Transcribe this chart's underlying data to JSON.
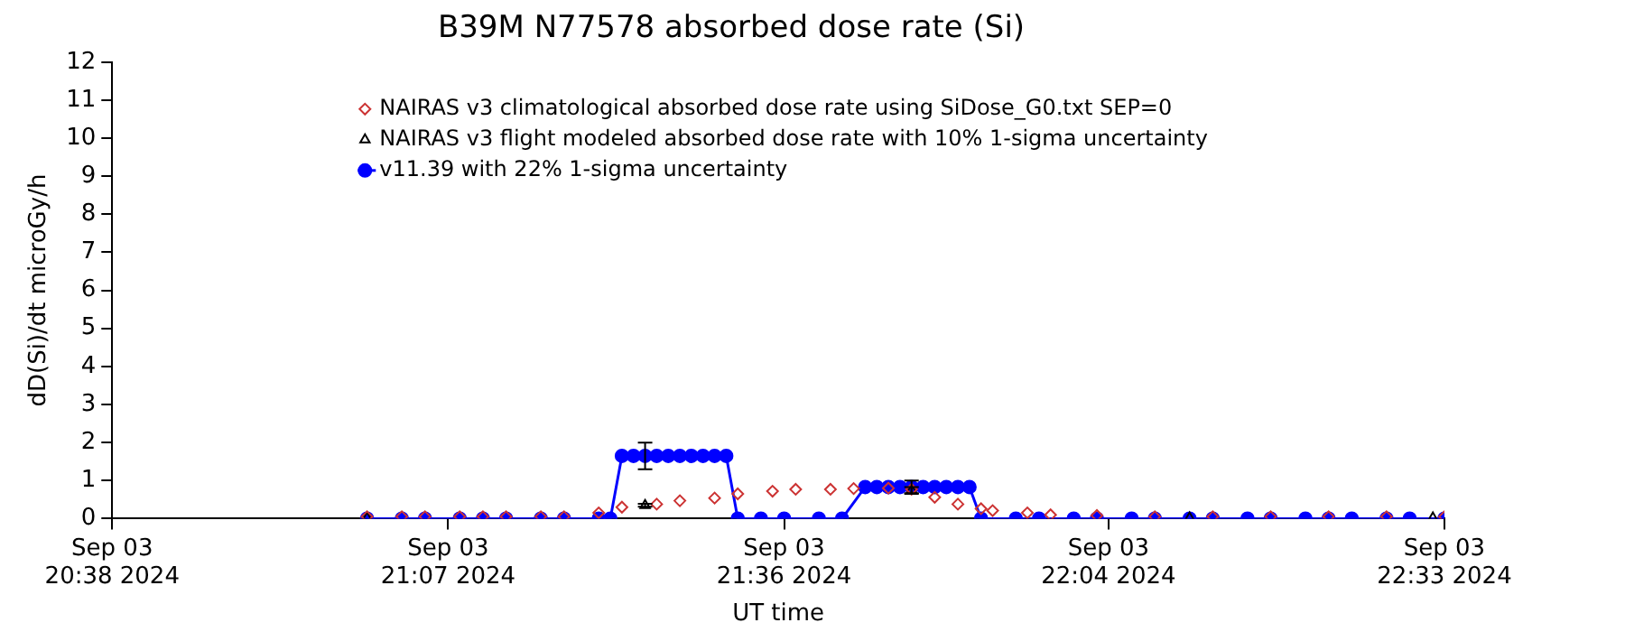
{
  "chart_data": {
    "type": "line",
    "title": "B39M N77578 absorbed dose rate (Si)",
    "xlabel": "UT time",
    "ylabel": "dD(Si)/dt microGy/h",
    "xlim": [
      "2024-09-03T20:38",
      "2024-09-03T22:33"
    ],
    "xticks": [
      {
        "value": "2024-09-03T20:38",
        "label": "Sep 03\n20:38 2024"
      },
      {
        "value": "2024-09-03T21:07",
        "label": "Sep 03\n21:07 2024"
      },
      {
        "value": "2024-09-03T21:36",
        "label": "Sep 03\n21:36 2024"
      },
      {
        "value": "2024-09-03T22:04",
        "label": "Sep 03\n22:04 2024"
      },
      {
        "value": "2024-09-03T22:33",
        "label": "Sep 03\n22:33 2024"
      }
    ],
    "ylim": [
      0,
      12
    ],
    "yticks": [
      0,
      1,
      2,
      3,
      4,
      5,
      6,
      7,
      8,
      9,
      10,
      11,
      12
    ],
    "grid": false,
    "legend": "top",
    "series": [
      {
        "name": "NAIRAS v3 climatological absorbed dose rate using SiDose_G0.txt SEP=0",
        "type": "scatter",
        "marker": "diamond",
        "color": "#cc3333",
        "x": [
          "2024-09-03T21:00",
          "2024-09-03T21:03",
          "2024-09-03T21:05",
          "2024-09-03T21:08",
          "2024-09-03T21:10",
          "2024-09-03T21:12",
          "2024-09-03T21:15",
          "2024-09-03T21:17",
          "2024-09-03T21:20",
          "2024-09-03T21:22",
          "2024-09-03T21:25",
          "2024-09-03T21:27",
          "2024-09-03T21:30",
          "2024-09-03T21:32",
          "2024-09-03T21:35",
          "2024-09-03T21:37",
          "2024-09-03T21:40",
          "2024-09-03T21:42",
          "2024-09-03T21:45",
          "2024-09-03T21:47",
          "2024-09-03T21:49",
          "2024-09-03T21:51",
          "2024-09-03T21:53",
          "2024-09-03T21:54",
          "2024-09-03T21:57",
          "2024-09-03T21:59",
          "2024-09-03T22:03",
          "2024-09-03T22:08",
          "2024-09-03T22:13",
          "2024-09-03T22:18",
          "2024-09-03T22:23",
          "2024-09-03T22:28",
          "2024-09-03T22:33"
        ],
        "values": [
          0.05,
          0.05,
          0.05,
          0.05,
          0.05,
          0.05,
          0.05,
          0.05,
          0.15,
          0.3,
          0.38,
          0.47,
          0.54,
          0.65,
          0.72,
          0.77,
          0.77,
          0.79,
          0.8,
          0.77,
          0.56,
          0.38,
          0.26,
          0.21,
          0.15,
          0.1,
          0.08,
          0.05,
          0.05,
          0.05,
          0.05,
          0.05,
          0.05
        ]
      },
      {
        "name": "NAIRAS v3 flight modeled absorbed dose rate with 10% 1-sigma uncertainty",
        "type": "scatter",
        "marker": "triangle",
        "color": "#000000",
        "x": [
          "2024-09-03T21:00",
          "2024-09-03T21:24",
          "2024-09-03T21:47",
          "2024-09-03T22:11",
          "2024-09-03T22:32"
        ],
        "values": [
          0.02,
          0.35,
          0.75,
          0.02,
          0.02
        ],
        "errors": [
          null,
          0.04,
          0.08,
          null,
          null
        ]
      },
      {
        "name": "v11.39 with 22% 1-sigma uncertainty",
        "marker": "circle",
        "color": "#0000ff",
        "x": [
          "2024-09-03T21:00",
          "2024-09-03T21:03",
          "2024-09-03T21:05",
          "2024-09-03T21:08",
          "2024-09-03T21:10",
          "2024-09-03T21:12",
          "2024-09-03T21:15",
          "2024-09-03T21:17",
          "2024-09-03T21:20",
          "2024-09-03T21:21",
          "2024-09-03T21:22",
          "2024-09-03T21:23",
          "2024-09-03T21:24",
          "2024-09-03T21:25",
          "2024-09-03T21:26",
          "2024-09-03T21:27",
          "2024-09-03T21:28",
          "2024-09-03T21:29",
          "2024-09-03T21:30",
          "2024-09-03T21:31",
          "2024-09-03T21:32",
          "2024-09-03T21:34",
          "2024-09-03T21:36",
          "2024-09-03T21:39",
          "2024-09-03T21:41",
          "2024-09-03T21:43",
          "2024-09-03T21:44",
          "2024-09-03T21:45",
          "2024-09-03T21:46",
          "2024-09-03T21:47",
          "2024-09-03T21:48",
          "2024-09-03T21:49",
          "2024-09-03T21:50",
          "2024-09-03T21:51",
          "2024-09-03T21:52",
          "2024-09-03T21:53",
          "2024-09-03T21:56",
          "2024-09-03T21:58",
          "2024-09-03T22:01",
          "2024-09-03T22:03",
          "2024-09-03T22:06",
          "2024-09-03T22:08",
          "2024-09-03T22:11",
          "2024-09-03T22:13",
          "2024-09-03T22:16",
          "2024-09-03T22:18",
          "2024-09-03T22:21",
          "2024-09-03T22:23",
          "2024-09-03T22:25",
          "2024-09-03T22:28",
          "2024-09-03T22:30",
          "2024-09-03T22:33"
        ],
        "values": [
          0,
          0,
          0,
          0,
          0,
          0,
          0,
          0,
          0,
          0,
          1.65,
          1.65,
          1.65,
          1.65,
          1.65,
          1.65,
          1.65,
          1.65,
          1.65,
          1.65,
          0,
          0,
          0,
          0,
          0,
          0.83,
          0.83,
          0.83,
          0.83,
          0.83,
          0.83,
          0.83,
          0.83,
          0.83,
          0.83,
          0,
          0,
          0,
          0,
          0,
          0,
          0,
          0,
          0,
          0,
          0,
          0,
          0,
          0,
          0,
          0,
          0
        ],
        "errors": [
          null,
          null,
          null,
          null,
          null,
          null,
          null,
          null,
          null,
          null,
          null,
          null,
          [
            1.3,
            2.0
          ],
          null,
          null,
          null,
          null,
          null,
          null,
          null,
          null,
          null,
          null,
          null,
          null,
          null,
          null,
          null,
          null,
          [
            0.65,
            1.0
          ],
          null,
          null,
          null,
          null,
          null,
          null,
          null,
          null,
          null,
          null,
          null,
          null,
          null,
          null,
          null,
          null,
          null,
          null,
          null,
          null,
          null,
          null
        ]
      }
    ]
  }
}
